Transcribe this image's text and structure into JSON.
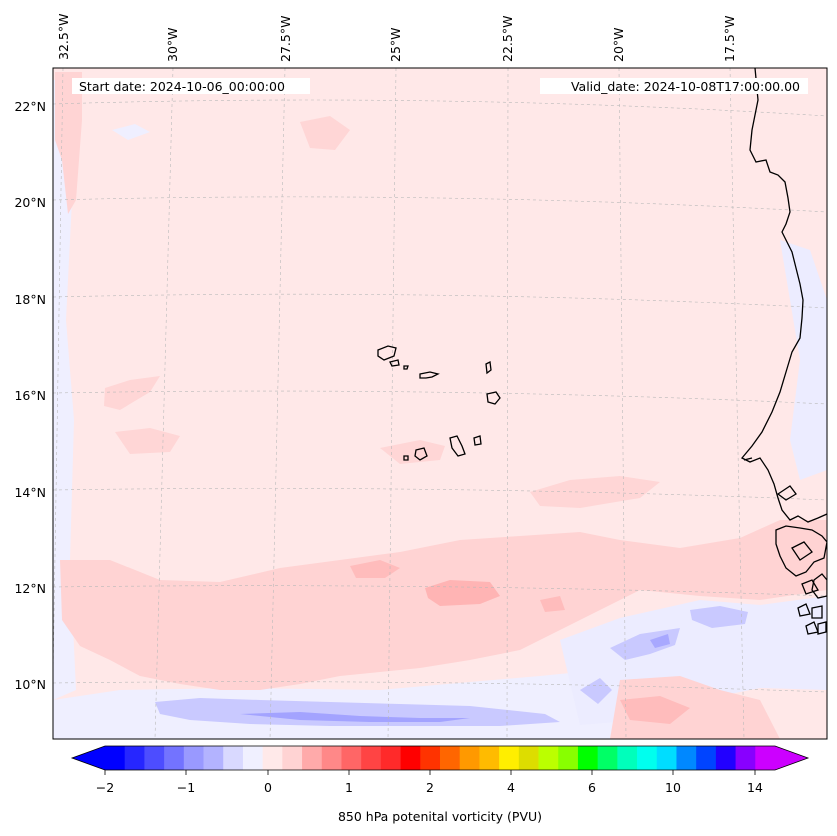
{
  "header": {
    "start_date": "Start date: 2024-10-06_00:00:00",
    "valid_date": "Valid_date: 2024-10-08T17:00:00.00"
  },
  "map": {
    "longitude_labels": [
      "32.5°W",
      "30°W",
      "27.5°W",
      "25°W",
      "22.5°W",
      "20°W",
      "17.5°W"
    ],
    "latitude_labels": [
      "22°N",
      "20°N",
      "18°N",
      "16°N",
      "14°N",
      "12°N",
      "10°N"
    ]
  },
  "colorbar": {
    "label": "850 hPa potenital vorticity (PVU)",
    "tick_labels": [
      "−2",
      "−1",
      "0",
      "1",
      "2",
      "4",
      "6",
      "10",
      "14"
    ],
    "colors": [
      "#0000ff",
      "#2626ff",
      "#4d4dff",
      "#7373ff",
      "#9999ff",
      "#b3b3ff",
      "#d9d9ff",
      "#f0f0ff",
      "#ffe9e9",
      "#ffd3d3",
      "#ffaaaa",
      "#ff8888",
      "#ff6666",
      "#ff4444",
      "#ff2a2a",
      "#ff0000",
      "#ff3300",
      "#ff6600",
      "#ff9900",
      "#ffbb00",
      "#ffee00",
      "#dddd00",
      "#bbff00",
      "#88ff00",
      "#00ff00",
      "#00ff66",
      "#00ffbb",
      "#00ffee",
      "#00ddff",
      "#0088ff",
      "#0044ff",
      "#2200ff",
      "#8800ff",
      "#cc00ff"
    ],
    "under_color": "#0000ff",
    "over_color": "#cc00ff"
  },
  "colors": {
    "background_field": "#ffe8e8",
    "light_blue": "#eeeeff",
    "mid_blue": "#c9c9ff",
    "deep_blue": "#9f9fff",
    "light_red": "#ffd6d6",
    "mid_red": "#ffbcbc"
  }
}
